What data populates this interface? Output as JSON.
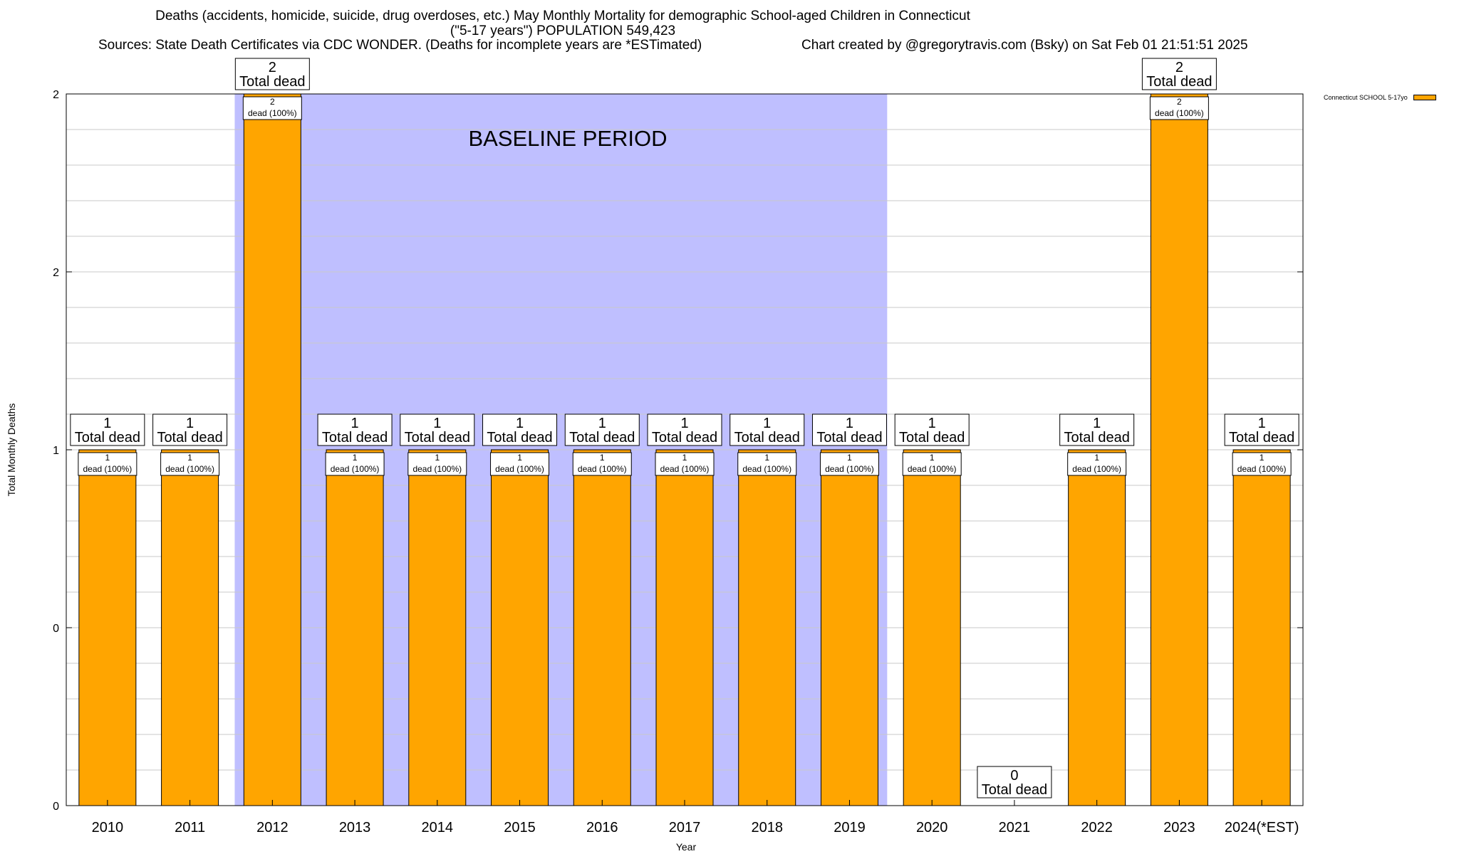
{
  "header": {
    "title_line_1": "Deaths (accidents, homicide, suicide, drug overdoses, etc.) May Monthly Mortality for demographic School-aged Children in Connecticut",
    "title_line_2": "(\"5-17 years\") POPULATION 549,423",
    "source": "Sources: State Death Certificates via CDC WONDER. (Deaths for incomplete years are *ESTimated)",
    "credit": "Chart created by @gregorytravis.com (Bsky) on Sat Feb 01 21:51:51 2025"
  },
  "legend": {
    "label": "Connecticut SCHOOL 5-17yo"
  },
  "colors": {
    "bar": "#FFA500",
    "baseline_band": "#BFBFFF",
    "grid": "#C8C8C8",
    "axis": "#000000"
  },
  "chart_data": {
    "type": "bar",
    "title": "Deaths (accidents, homicide, suicide, drug overdoses, etc.) May Monthly Mortality for demographic School-aged Children in Connecticut",
    "xlabel": "Year",
    "ylabel": "Total Monthly Deaths",
    "ylim": [
      0,
      2
    ],
    "y_tick_labels": [
      "0",
      "0",
      "1",
      "2",
      "2"
    ],
    "grid": true,
    "legend_position": "top-right",
    "categories": [
      "2010",
      "2011",
      "2012",
      "2013",
      "2014",
      "2015",
      "2016",
      "2017",
      "2018",
      "2019",
      "2020",
      "2021",
      "2022",
      "2023",
      "2024(*EST)"
    ],
    "series": [
      {
        "name": "Connecticut SCHOOL 5-17yo",
        "values": [
          1,
          1,
          2,
          1,
          1,
          1,
          1,
          1,
          1,
          1,
          1,
          0,
          1,
          2,
          1
        ]
      }
    ],
    "bar_labels": [
      "1\ndead (100%)",
      "1\ndead (100%)",
      "2\ndead (100%)",
      "1\ndead (100%)",
      "1\ndead (100%)",
      "1\ndead (100%)",
      "1\ndead (100%)",
      "1\ndead (100%)",
      "1\ndead (100%)",
      "1\ndead (100%)",
      "1\ndead (100%)",
      "",
      "1\ndead (100%)",
      "2\ndead (100%)",
      "1\ndead (100%)"
    ],
    "total_labels": [
      "1\nTotal dead",
      "1\nTotal dead",
      "2\nTotal dead",
      "1\nTotal dead",
      "1\nTotal dead",
      "1\nTotal dead",
      "1\nTotal dead",
      "1\nTotal dead",
      "1\nTotal dead",
      "1\nTotal dead",
      "1\nTotal dead",
      "0\nTotal dead",
      "1\nTotal dead",
      "2\nTotal dead",
      "1\nTotal dead"
    ],
    "baseline_period": {
      "label": "BASELINE PERIOD",
      "start": "2012",
      "end": "2019"
    }
  }
}
